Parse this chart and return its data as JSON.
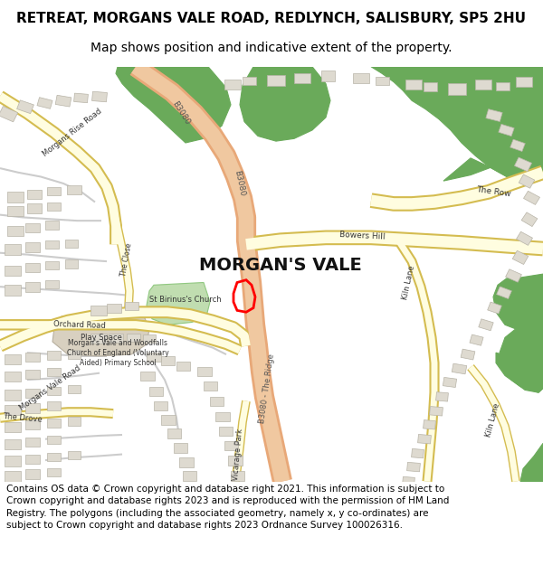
{
  "title_line1": "RETREAT, MORGANS VALE ROAD, REDLYNCH, SALISBURY, SP5 2HU",
  "title_line2": "Map shows position and indicative extent of the property.",
  "footer_text": "Contains OS data © Crown copyright and database right 2021. This information is subject to Crown copyright and database rights 2023 and is reproduced with the permission of HM Land Registry. The polygons (including the associated geometry, namely x, y co-ordinates) are subject to Crown copyright and database rights 2023 Ordnance Survey 100026316.",
  "map_bg": "#ffffff",
  "road_main_color": "#f0c8a0",
  "road_main_outline": "#e8a878",
  "road_minor_color": "#fffde0",
  "road_minor_outline": "#d4bc50",
  "green_color": "#6aaa5a",
  "building_color": "#dedad0",
  "building_outline": "#b8b4a8",
  "church_green": "#c0ddb0",
  "school_beige": "#d8d0c0",
  "property_color": "red",
  "title_fontsize": 11,
  "subtitle_fontsize": 10,
  "footer_fontsize": 7.5
}
